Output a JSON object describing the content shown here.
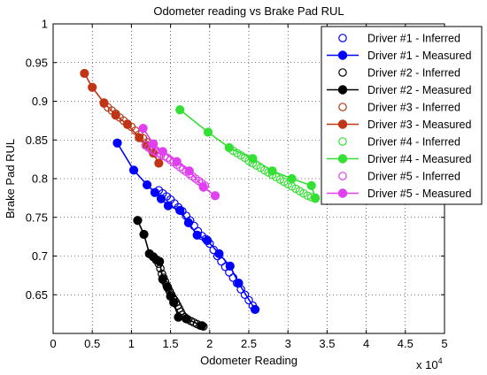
{
  "chart_data": {
    "type": "scatter",
    "title": "Odometer reading vs Brake Pad RUL",
    "xlabel": "Odometer Reading",
    "ylabel": "Brake Pad RUL",
    "x_exponent_label": "x 10",
    "x_exponent_power": "4",
    "xlim": [
      0,
      50000
    ],
    "ylim": [
      0.6,
      1.0
    ],
    "xticks": [
      0,
      5000,
      10000,
      15000,
      20000,
      25000,
      30000,
      35000,
      40000,
      45000,
      50000
    ],
    "xtick_labels": [
      "0",
      "0.5",
      "1",
      "1.5",
      "2",
      "2.5",
      "3",
      "3.5",
      "4",
      "4.5",
      "5"
    ],
    "yticks": [
      0.65,
      0.7,
      0.75,
      0.8,
      0.85,
      0.9,
      0.95,
      1.0
    ],
    "ytick_labels": [
      "0.65",
      "0.7",
      "0.75",
      "0.8",
      "0.85",
      "0.9",
      "0.95",
      "1"
    ],
    "grid": true,
    "legend_position": "top-right",
    "series": [
      {
        "name": "Driver #1 - Inferred",
        "color": "#0000ff",
        "marker": "open-circle",
        "line": false,
        "x": [
          13500,
          14000,
          14500,
          15000,
          15500,
          16000,
          16500,
          17000,
          17500,
          18000,
          18500,
          19000,
          19500,
          20000,
          20500,
          21000,
          21500,
          22000,
          22500,
          23000,
          23500,
          24000,
          24500,
          25000,
          25500
        ],
        "y": [
          0.785,
          0.781,
          0.777,
          0.773,
          0.768,
          0.763,
          0.758,
          0.752,
          0.746,
          0.739,
          0.732,
          0.726,
          0.722,
          0.716,
          0.708,
          0.7,
          0.693,
          0.686,
          0.679,
          0.672,
          0.665,
          0.657,
          0.65,
          0.643,
          0.636
        ]
      },
      {
        "name": "Driver #1 - Measured",
        "color": "#0000ff",
        "marker": "filled-circle",
        "line": true,
        "x": [
          8200,
          10300,
          12000,
          13000,
          13800,
          14700,
          16200,
          17300,
          18400,
          19700,
          21200,
          22600,
          23700,
          25800
        ],
        "y": [
          0.846,
          0.811,
          0.792,
          0.782,
          0.774,
          0.765,
          0.759,
          0.743,
          0.727,
          0.72,
          0.703,
          0.687,
          0.665,
          0.631
        ]
      },
      {
        "name": "Driver #2 - Inferred",
        "color": "#000000",
        "marker": "open-circle",
        "line": false,
        "x": [
          13500,
          13700,
          13900,
          14100,
          14300,
          14500,
          14700,
          14900,
          15100,
          15300,
          15500,
          15700,
          15900,
          16100,
          16300,
          16500,
          16800,
          17200,
          17600,
          18000,
          18400,
          18800,
          19200
        ],
        "y": [
          0.69,
          0.684,
          0.677,
          0.672,
          0.667,
          0.662,
          0.658,
          0.654,
          0.65,
          0.646,
          0.643,
          0.64,
          0.636,
          0.632,
          0.628,
          0.624,
          0.621,
          0.618,
          0.616,
          0.614,
          0.612,
          0.61,
          0.609
        ]
      },
      {
        "name": "Driver #2 - Measured",
        "color": "#000000",
        "marker": "filled-circle",
        "line": true,
        "x": [
          10800,
          11600,
          12300,
          12800,
          13200,
          13600,
          14000,
          14600,
          15000,
          15400,
          16000,
          17000,
          19000
        ],
        "y": [
          0.746,
          0.728,
          0.703,
          0.699,
          0.695,
          0.693,
          0.67,
          0.66,
          0.648,
          0.64,
          0.621,
          0.619,
          0.61
        ]
      },
      {
        "name": "Driver #3 - Inferred",
        "color": "#b03a1a",
        "marker": "open-circle",
        "line": false,
        "x": [
          6500,
          7000,
          7500,
          8000,
          8500,
          9000,
          9500,
          10000,
          10500,
          11000,
          11500,
          12000,
          12500,
          13000,
          13500
        ],
        "y": [
          0.897,
          0.892,
          0.888,
          0.884,
          0.879,
          0.875,
          0.871,
          0.867,
          0.862,
          0.857,
          0.852,
          0.847,
          0.841,
          0.835,
          0.829
        ]
      },
      {
        "name": "Driver #3 - Measured",
        "color": "#c03515",
        "marker": "filled-circle",
        "line": true,
        "x": [
          4000,
          5000,
          6500,
          8000,
          9500,
          11000,
          12000,
          12800,
          13500
        ],
        "y": [
          0.936,
          0.918,
          0.898,
          0.882,
          0.87,
          0.853,
          0.843,
          0.833,
          0.82
        ]
      },
      {
        "name": "Driver #4 - Inferred",
        "color": "#33e033",
        "marker": "open-circle",
        "line": false,
        "x": [
          22500,
          23000,
          23500,
          24000,
          24500,
          25000,
          25500,
          26000,
          26500,
          27000,
          27500,
          28000,
          28500,
          29000,
          29500,
          30000,
          30500,
          31000,
          31500,
          32000,
          32500,
          33000,
          33500
        ],
        "y": [
          0.84,
          0.836,
          0.833,
          0.83,
          0.827,
          0.823,
          0.82,
          0.817,
          0.814,
          0.811,
          0.808,
          0.805,
          0.802,
          0.799,
          0.796,
          0.793,
          0.79,
          0.787,
          0.784,
          0.781,
          0.778,
          0.776,
          0.774
        ]
      },
      {
        "name": "Driver #4 - Measured",
        "color": "#33e033",
        "marker": "filled-circle",
        "line": true,
        "x": [
          16200,
          19800,
          22500,
          25500,
          28000,
          30500,
          33000,
          33500
        ],
        "y": [
          0.889,
          0.86,
          0.84,
          0.826,
          0.81,
          0.8,
          0.791,
          0.775
        ]
      },
      {
        "name": "Driver #5 - Inferred",
        "color": "#e040f0",
        "marker": "open-circle",
        "line": false,
        "x": [
          11800,
          12200,
          12600,
          13000,
          13400,
          13800,
          14200,
          14600,
          15000,
          15400,
          15800,
          16200,
          16600,
          17000,
          17400,
          17800,
          18200,
          18600,
          19000,
          19400
        ],
        "y": [
          0.843,
          0.84,
          0.837,
          0.835,
          0.833,
          0.831,
          0.829,
          0.827,
          0.824,
          0.821,
          0.818,
          0.815,
          0.812,
          0.809,
          0.806,
          0.803,
          0.8,
          0.797,
          0.794,
          0.791
        ]
      },
      {
        "name": "Driver #5 - Measured",
        "color": "#e040f0",
        "marker": "filled-circle",
        "line": true,
        "x": [
          11500,
          12800,
          14000,
          15800,
          17400,
          19200,
          20700
        ],
        "y": [
          0.865,
          0.845,
          0.835,
          0.822,
          0.81,
          0.789,
          0.778
        ]
      }
    ]
  }
}
